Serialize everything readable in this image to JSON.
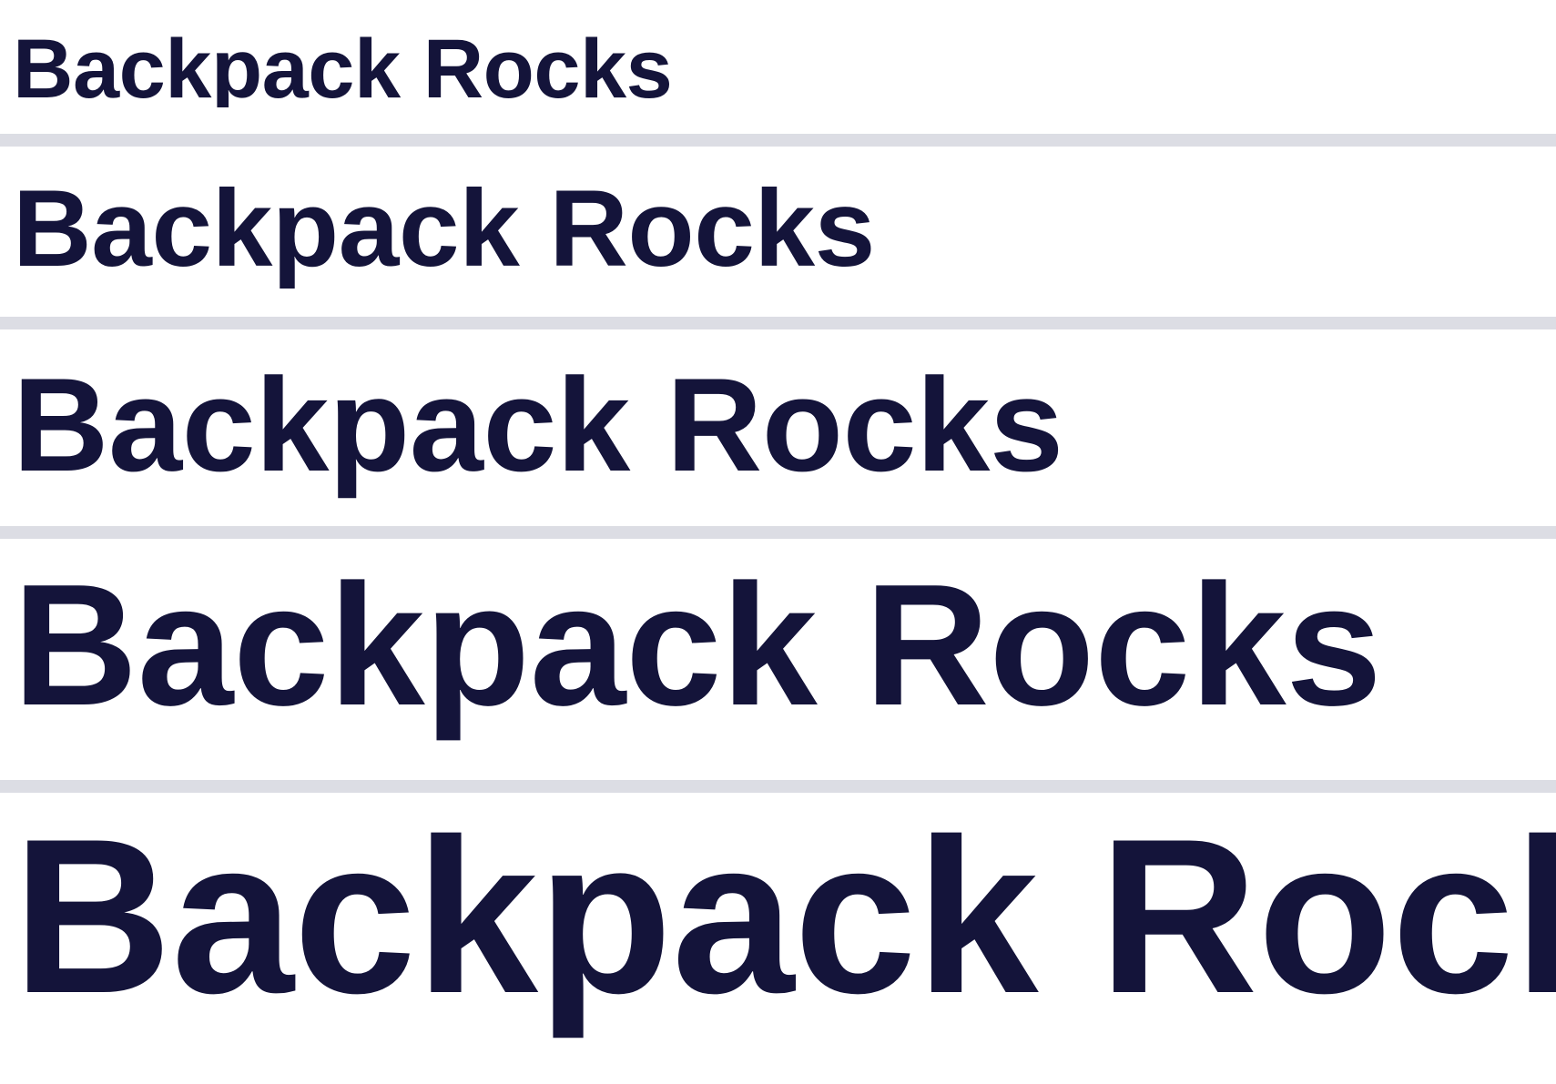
{
  "samples": [
    {
      "text": "Backpack Rocks"
    },
    {
      "text": "Backpack Rocks"
    },
    {
      "text": "Backpack Rocks"
    },
    {
      "text": "Backpack Rocks"
    },
    {
      "text": "Backpack Rocks"
    }
  ],
  "colors": {
    "text": "#14143a",
    "divider": "#dcdde4",
    "background": "#ffffff"
  }
}
